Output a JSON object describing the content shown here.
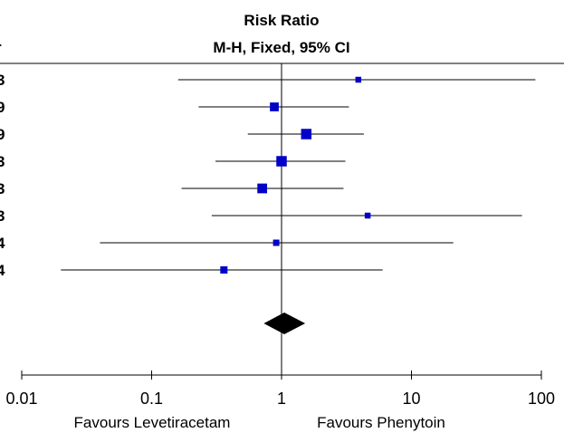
{
  "header": {
    "title_line1": "Risk Ratio",
    "title_line2": "M-H, Fixed, 95% CI",
    "left_cut_header": "r"
  },
  "chart_data": {
    "type": "forest",
    "title": "Risk Ratio",
    "subtitle": "M-H, Fixed, 95% CI",
    "x_scale": "log",
    "xlim": [
      0.01,
      100
    ],
    "x_ticks": [
      0.01,
      0.1,
      1,
      10,
      100
    ],
    "x_tick_labels": [
      "0.01",
      "0.1",
      "1",
      "10",
      "100"
    ],
    "null_line": 1,
    "label_left": "Favours Levetiracetam",
    "label_right": "Favours Phenytoin",
    "left_cut_year_glyphs": [
      "3",
      "9",
      "9",
      "3",
      "3",
      "3",
      "4",
      "4"
    ],
    "studies": [
      {
        "est": 3.9,
        "lo": 0.16,
        "hi": 90,
        "weight": 1.0
      },
      {
        "est": 0.88,
        "lo": 0.23,
        "hi": 3.3,
        "weight": 2.3
      },
      {
        "est": 1.55,
        "lo": 0.55,
        "hi": 4.3,
        "weight": 3.0
      },
      {
        "est": 1.0,
        "lo": 0.31,
        "hi": 3.1,
        "weight": 3.0
      },
      {
        "est": 0.71,
        "lo": 0.17,
        "hi": 3.0,
        "weight": 2.7
      },
      {
        "est": 4.6,
        "lo": 0.29,
        "hi": 71,
        "weight": 1.0
      },
      {
        "est": 0.91,
        "lo": 0.04,
        "hi": 21,
        "weight": 1.2
      },
      {
        "est": 0.36,
        "lo": 0.02,
        "hi": 6.0,
        "weight": 1.6
      }
    ],
    "pooled": {
      "est": 1.05,
      "lo": 0.73,
      "hi": 1.52
    }
  },
  "colors": {
    "marker": "#0000c8",
    "line": "#000000",
    "diamond": "#000000"
  }
}
